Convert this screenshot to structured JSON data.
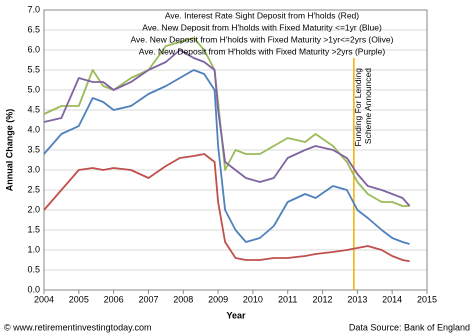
{
  "chart_data": {
    "type": "line",
    "x": [
      2004.0,
      2004.5,
      2005.0,
      2005.4,
      2005.7,
      2006.0,
      2006.5,
      2007.0,
      2007.5,
      2007.9,
      2008.3,
      2008.6,
      2008.9,
      2009.0,
      2009.2,
      2009.5,
      2009.8,
      2010.2,
      2010.6,
      2011.0,
      2011.5,
      2011.8,
      2012.3,
      2012.7,
      2013.0,
      2013.3,
      2013.7,
      2014.0,
      2014.3,
      2014.5
    ],
    "series": [
      {
        "name": "Ave. Interest Rate Sight Deposit from H'holds (Red)",
        "color": "#c0504d",
        "values": [
          2.0,
          2.5,
          3.0,
          3.05,
          3.0,
          3.05,
          3.0,
          2.8,
          3.1,
          3.3,
          3.35,
          3.4,
          3.2,
          2.2,
          1.2,
          0.8,
          0.75,
          0.75,
          0.8,
          0.8,
          0.85,
          0.9,
          0.95,
          1.0,
          1.05,
          1.1,
          1.0,
          0.85,
          0.75,
          0.72
        ]
      },
      {
        "name": "Ave. New Deposit from H'holds with Fixed Maturity <=1yr (Blue)",
        "color": "#4f81bd",
        "values": [
          3.4,
          3.9,
          4.1,
          4.8,
          4.7,
          4.5,
          4.6,
          4.9,
          5.1,
          5.3,
          5.5,
          5.4,
          5.0,
          3.6,
          2.0,
          1.5,
          1.2,
          1.3,
          1.6,
          2.2,
          2.4,
          2.3,
          2.6,
          2.5,
          2.0,
          1.8,
          1.5,
          1.3,
          1.2,
          1.15
        ]
      },
      {
        "name": "Ave. New Deposit from H'holds with Fixed Maturity >1yr<=2yrs (Olive)",
        "color": "#9bbb59",
        "values": [
          4.4,
          4.6,
          4.6,
          5.5,
          5.1,
          5.0,
          5.3,
          5.5,
          6.1,
          6.2,
          6.3,
          6.0,
          5.5,
          4.7,
          3.0,
          3.5,
          3.4,
          3.4,
          3.6,
          3.8,
          3.7,
          3.9,
          3.6,
          3.2,
          2.7,
          2.4,
          2.2,
          2.2,
          2.1,
          2.1
        ]
      },
      {
        "name": "Ave. New Deposit from H'holds with Fixed Maturity >2yrs (Purple)",
        "color": "#8064a2",
        "values": [
          4.2,
          4.3,
          5.3,
          5.2,
          5.2,
          5.0,
          5.2,
          5.5,
          5.7,
          6.0,
          5.8,
          5.7,
          5.5,
          4.5,
          3.2,
          3.0,
          2.8,
          2.7,
          2.8,
          3.3,
          3.5,
          3.6,
          3.5,
          3.3,
          2.9,
          2.6,
          2.5,
          2.4,
          2.3,
          2.1
        ]
      }
    ],
    "xlabel": "Year",
    "ylabel": "Annual Change (%)",
    "xlim": [
      2004,
      2015
    ],
    "xticks": [
      2004,
      2005,
      2006,
      2007,
      2008,
      2009,
      2010,
      2011,
      2012,
      2013,
      2014,
      2015
    ],
    "ylim": [
      0,
      7
    ],
    "yticks": [
      {
        "value": 0,
        "label": "0.0"
      },
      0.5,
      {
        "value": 1,
        "label": "1.0"
      },
      1.5,
      {
        "value": 2,
        "label": "2.0"
      },
      2.5,
      {
        "value": 3,
        "label": "3.0"
      },
      3.5,
      {
        "value": 4,
        "label": "4.0"
      },
      4.5,
      {
        "value": 5,
        "label": "5.0"
      },
      5.5,
      {
        "value": 6,
        "label": "6.0"
      },
      6.5,
      {
        "value": 7,
        "label": "7.0"
      }
    ],
    "grid": true,
    "annotation": {
      "lines": [
        "Funding For Lending",
        "Scheme Announced"
      ],
      "x": 2012.9,
      "color": "#f0b000"
    },
    "footer_left": "© www.retirementinvestingtoday.com",
    "footer_right": "Data Source: Bank of England"
  }
}
